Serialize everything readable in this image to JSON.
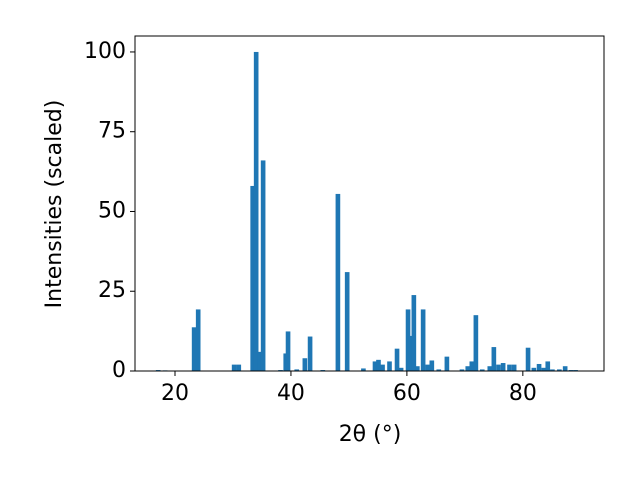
{
  "chart_data": {
    "type": "bar",
    "xlabel": "2θ (°)",
    "ylabel": "Intensities (scaled)",
    "color": "#1f77b4",
    "bar_width": 0.8,
    "x": [
      17.1,
      18.3,
      23.3,
      24.0,
      30.2,
      31.0,
      33.4,
      34.0,
      34.7,
      35.2,
      38.2,
      39.1,
      39.5,
      41.0,
      42.4,
      43.3,
      45.5,
      48.1,
      49.7,
      52.5,
      54.5,
      55.1,
      55.8,
      57.0,
      58.3,
      59.0,
      60.2,
      60.7,
      61.2,
      61.8,
      62.8,
      63.6,
      64.3,
      65.5,
      66.9,
      69.5,
      70.5,
      71.2,
      71.9,
      73.0,
      74.3,
      75.0,
      75.8,
      76.6,
      77.7,
      78.5,
      80.9,
      81.9,
      82.8,
      83.6,
      84.3,
      85.1,
      86.3,
      87.3,
      88.3,
      89.1
    ],
    "values": [
      0.3,
      0.2,
      13.7,
      19.3,
      2,
      2,
      58,
      100,
      6,
      66,
      0.3,
      5.5,
      12.4,
      0.5,
      4,
      10.8,
      0.3,
      55.5,
      31,
      0.8,
      3,
      3.5,
      2,
      3,
      7,
      1,
      19.3,
      11,
      23.8,
      1.5,
      19.3,
      2,
      3.3,
      0.5,
      4.5,
      0.5,
      1.5,
      3,
      17.5,
      0.5,
      1.5,
      7.5,
      2,
      2.5,
      2,
      2,
      7.3,
      1,
      2.2,
      1,
      3,
      0.5,
      0.5,
      1.5,
      0.3,
      0.3
    ],
    "xlim": [
      13.1,
      94.0
    ],
    "ylim": [
      0,
      105
    ],
    "xticks": [
      20,
      40,
      60,
      80
    ],
    "yticks": [
      0,
      25,
      50,
      75,
      100
    ]
  }
}
